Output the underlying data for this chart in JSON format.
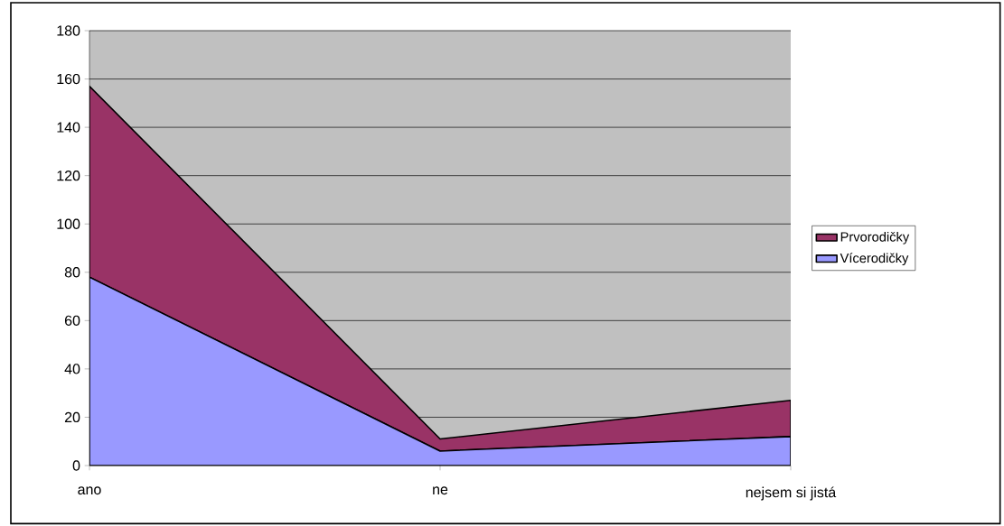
{
  "chart_data": {
    "type": "area",
    "stacked": true,
    "categories": [
      "ano",
      "ne",
      "nejsem si jistá"
    ],
    "series": [
      {
        "name": "Vícerodičky",
        "color": "#9999ff",
        "values": [
          78,
          6,
          12
        ]
      },
      {
        "name": "Prvorodičky",
        "color": "#993366",
        "values": [
          79,
          5,
          15
        ]
      }
    ],
    "ylim": [
      0,
      180
    ],
    "yticks": [
      0,
      20,
      40,
      60,
      80,
      100,
      120,
      140,
      160,
      180
    ],
    "grid": "y",
    "legend": "right"
  }
}
